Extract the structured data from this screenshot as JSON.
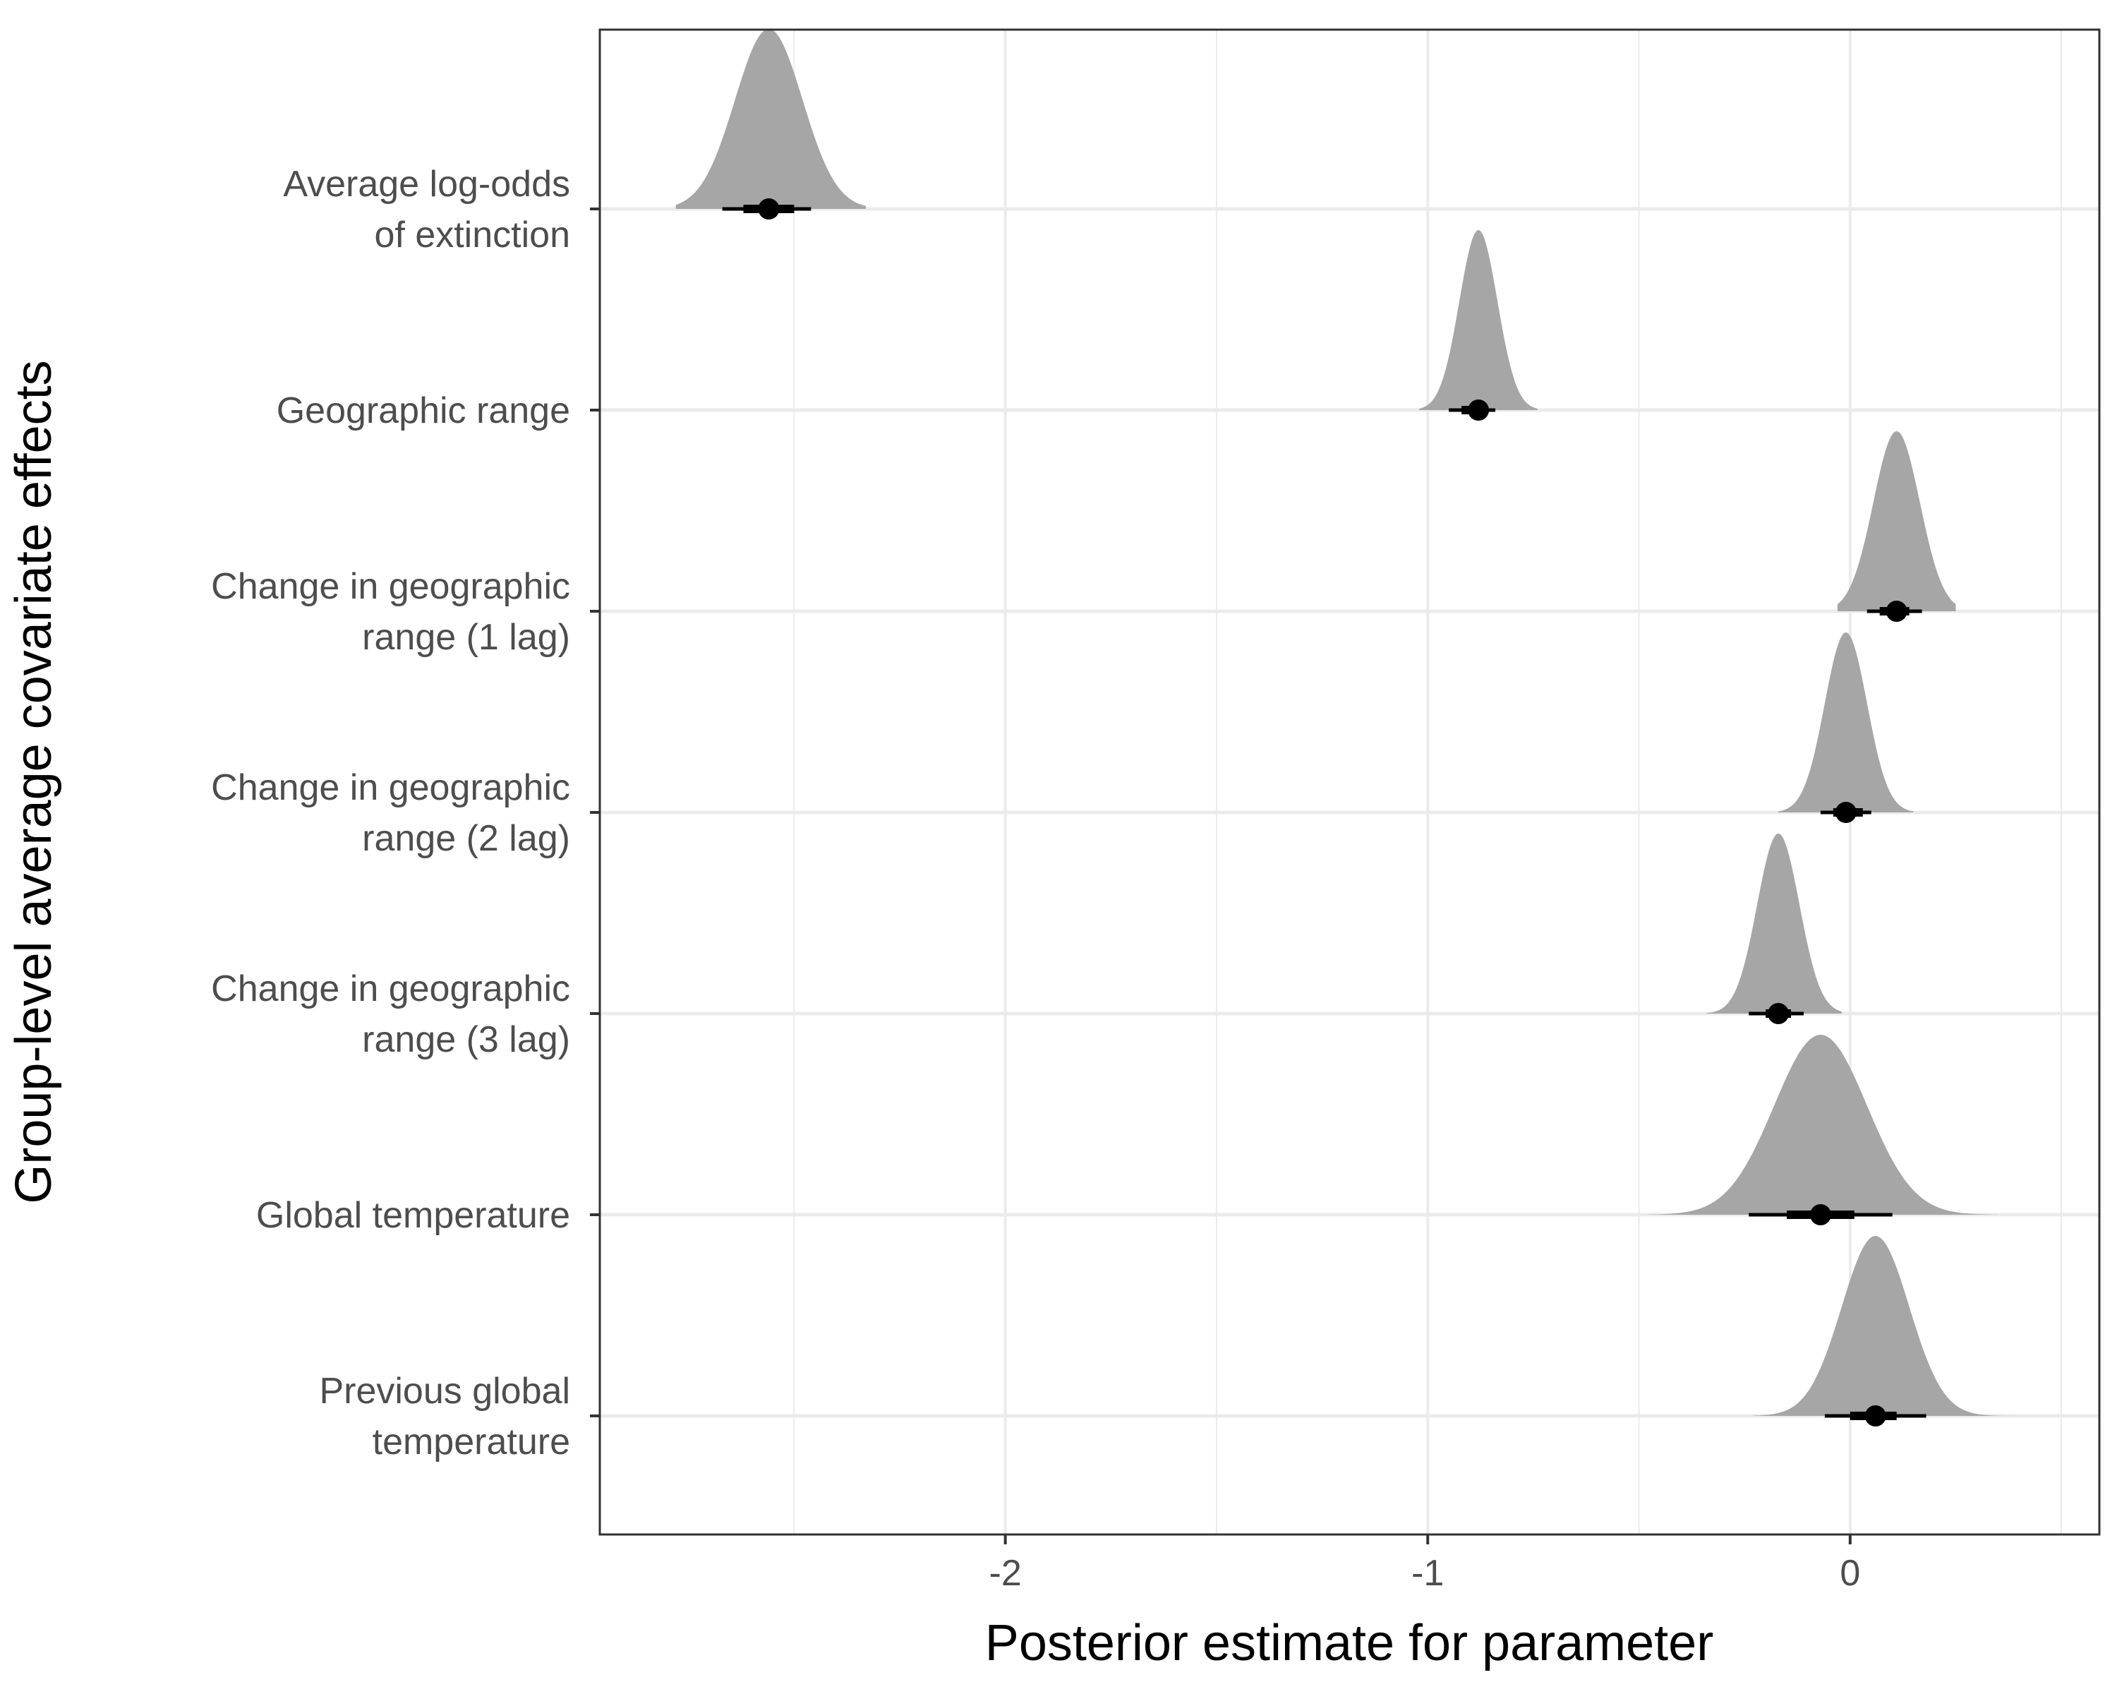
{
  "chart_data": {
    "type": "halfeye",
    "xlabel": "Posterior estimate for parameter",
    "ylabel": "Group-level average covariate effects",
    "xlim": [
      -2.96,
      0.59
    ],
    "x_ticks": [
      "-2",
      "-1",
      "0"
    ],
    "x_tick_values": [
      -2,
      -1,
      0
    ],
    "grid": true,
    "colors": {
      "density": "#a6a6a6",
      "point": "#000000",
      "grid": "#ebebeb",
      "panel_border": "#333333"
    },
    "parameters": [
      {
        "label_lines": [
          "Average log-odds",
          "of extinction"
        ],
        "median": -2.56,
        "ci66": [
          -2.62,
          -2.5
        ],
        "ci95": [
          -2.67,
          -2.46
        ],
        "sd": 0.08,
        "range": [
          -2.78,
          -2.33
        ]
      },
      {
        "label_lines": [
          "Geographic range"
        ],
        "median": -0.88,
        "ci66": [
          -0.92,
          -0.86
        ],
        "ci95": [
          -0.95,
          -0.84
        ],
        "sd": 0.045,
        "range": [
          -1.02,
          -0.74
        ]
      },
      {
        "label_lines": [
          "Change in geographic",
          "range (1 lag)"
        ],
        "median": 0.11,
        "ci66": [
          0.07,
          0.14
        ],
        "ci95": [
          0.04,
          0.17
        ],
        "sd": 0.055,
        "range": [
          -0.03,
          0.25
        ]
      },
      {
        "label_lines": [
          "Change in geographic",
          "range (2 lag)"
        ],
        "median": -0.01,
        "ci66": [
          -0.04,
          0.03
        ],
        "ci95": [
          -0.07,
          0.05
        ],
        "sd": 0.05,
        "range": [
          -0.17,
          0.15
        ]
      },
      {
        "label_lines": [
          "Change in geographic",
          "range (3 lag)"
        ],
        "median": -0.17,
        "ci66": [
          -0.2,
          -0.14
        ],
        "ci95": [
          -0.24,
          -0.11
        ],
        "sd": 0.05,
        "range": [
          -0.34,
          -0.02
        ]
      },
      {
        "label_lines": [
          "Global temperature"
        ],
        "median": -0.07,
        "ci66": [
          -0.15,
          0.01
        ],
        "ci95": [
          -0.24,
          0.1
        ],
        "sd": 0.11,
        "range": [
          -0.48,
          0.35
        ]
      },
      {
        "label_lines": [
          "Previous global",
          "temperature"
        ],
        "median": 0.06,
        "ci66": [
          0.0,
          0.11
        ],
        "ci95": [
          -0.06,
          0.18
        ],
        "sd": 0.08,
        "range": [
          -0.23,
          0.43
        ]
      }
    ]
  }
}
